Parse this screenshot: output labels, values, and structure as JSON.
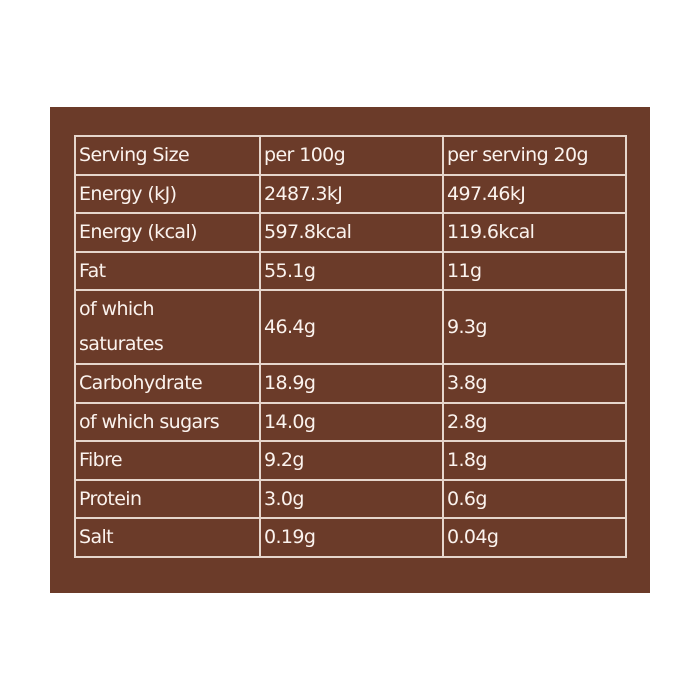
{
  "table": {
    "header": [
      "Serving Size",
      "per 100g",
      "per serving 20g"
    ],
    "rows": [
      [
        "Energy (kJ)",
        "2487.3kJ",
        "497.46kJ"
      ],
      [
        "Energy (kcal)",
        "597.8kcal",
        "119.6kcal"
      ],
      [
        "Fat",
        "55.1g",
        "11g"
      ],
      [
        "of which saturates",
        "46.4g",
        "9.3g"
      ],
      [
        "Carbohydrate",
        "18.9g",
        "3.8g"
      ],
      [
        "of which sugars",
        "14.0g",
        "2.8g"
      ],
      [
        "Fibre",
        "9.2g",
        "1.8g"
      ],
      [
        "Protein",
        "3.0g",
        "0.6g"
      ],
      [
        "Salt",
        "0.19g",
        "0.04g"
      ]
    ]
  },
  "colors": {
    "background": "#6b3b29",
    "text": "#fbf3ee",
    "border": "#e6d6cc"
  }
}
